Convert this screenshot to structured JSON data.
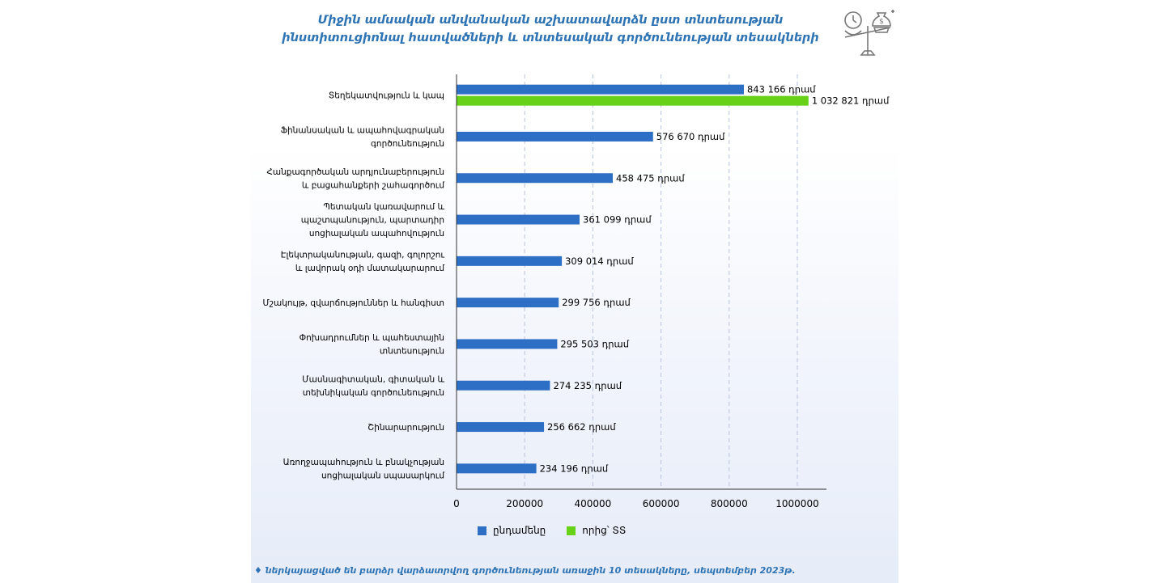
{
  "chart_data": {
    "type": "bar",
    "orientation": "horizontal",
    "title_lines": [
      "Միջին ամսական անվանական աշխատավարձն ըստ տնտեսության",
      "ինստիտուցիոնալ հատվածների և տնտեսական գործունեության տեսակների"
    ],
    "categories": [
      [
        "Տեղեկատվություն և կապ"
      ],
      [
        "Ֆինանսական և ապահովագրական",
        "գործունեություն"
      ],
      [
        "Հանքագործական արդյունաբերություն",
        "և բացահանքերի շահագործում"
      ],
      [
        "Պետական կառավարում և",
        "պաշտպանություն, պարտադիր",
        "սոցիալական ապահովություն"
      ],
      [
        "Էլեկտրականության, գազի, գոլորշու",
        "և լավորակ օդի մատակարարում"
      ],
      [
        "Մշակույթ, զվարճություններ և հանգիստ"
      ],
      [
        "Փոխադրումներ և պահեստային",
        "տնտեսություն"
      ],
      [
        "Մասնագիտական, գիտական և",
        "տեխնիկական գործունեություն"
      ],
      [
        "Շինարարություն"
      ],
      [
        "Առողջապահություն և բնակչության",
        "սոցիալական սպասարկում"
      ]
    ],
    "series": [
      {
        "name": "ընդամենը",
        "color": "#2e6fc6",
        "values": [
          843166,
          576670,
          458475,
          361099,
          309014,
          299756,
          295503,
          274235,
          256662,
          234196
        ],
        "labels": [
          "843 166 դրամ",
          "576 670 դրամ",
          "458 475 դրամ",
          "361 099 դրամ",
          "309 014 դրամ",
          "299 756 դրամ",
          "295 503 դրամ",
          "274 235 դրամ",
          "256 662 դրամ",
          "234 196 դրամ"
        ]
      },
      {
        "name": "որից՝ ՏՏ",
        "color": "#66d117",
        "values": [
          1032821,
          null,
          null,
          null,
          null,
          null,
          null,
          null,
          null,
          null
        ],
        "labels": [
          "1 032 821 դրամ",
          null,
          null,
          null,
          null,
          null,
          null,
          null,
          null,
          null
        ]
      }
    ],
    "x_ticks": [
      0,
      200000,
      400000,
      600000,
      800000,
      1000000
    ],
    "x_tick_labels": [
      "0",
      "200000",
      "400000",
      "600000",
      "800000",
      "1000000"
    ],
    "xlim": [
      0,
      1080000
    ],
    "grid": "vertical dashed",
    "legend_position": "bottom"
  },
  "footnote": "♦ ներկայացված են բարձր վարձատրվող գործունեության առաջին 10 տեսակները, սեպտեմբեր 2023թ.",
  "icon_name": "balance-scale-clock-money-icon",
  "colors": {
    "title": "#2e74b5",
    "total": "#2e6fc6",
    "it": "#66d117"
  }
}
